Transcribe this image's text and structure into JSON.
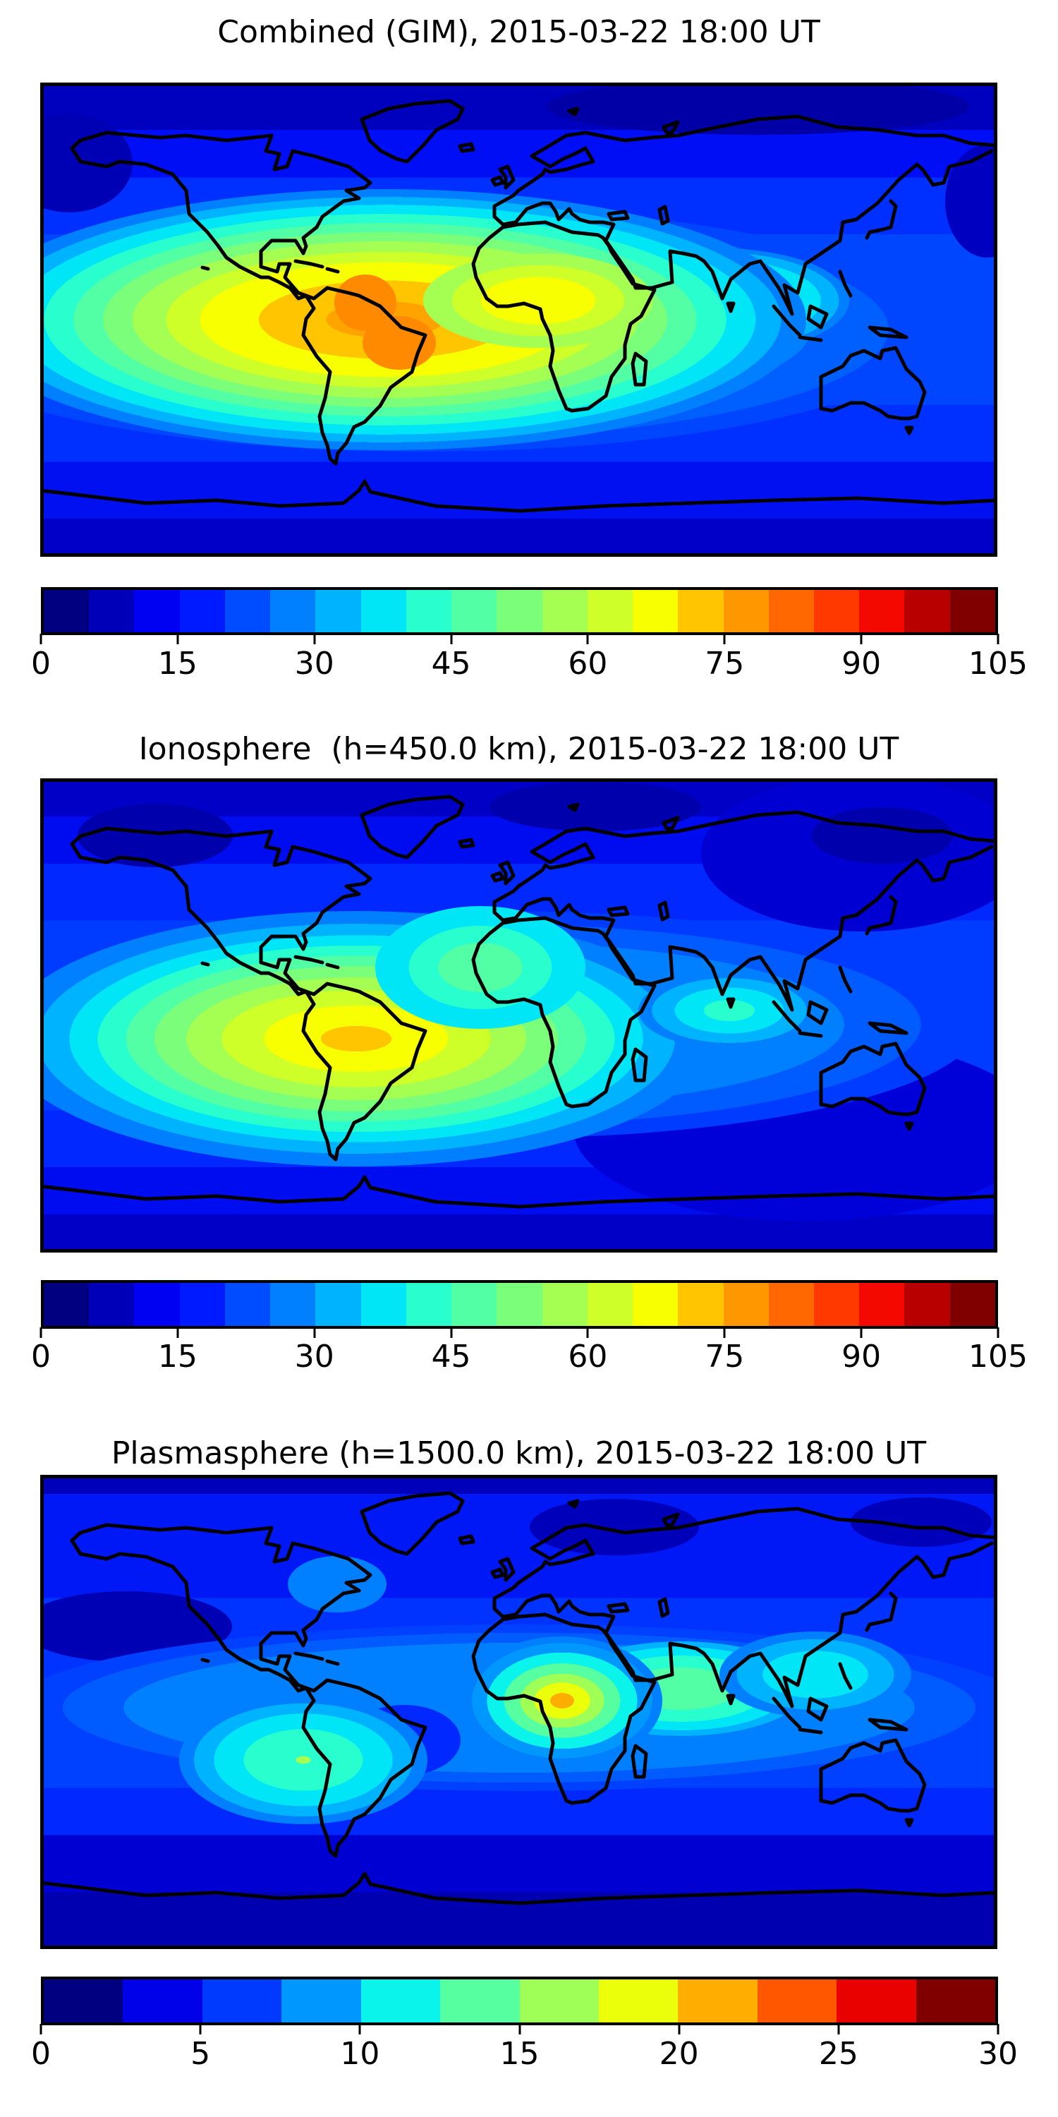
{
  "figure": {
    "background": "#ffffff",
    "text_color": "#000000",
    "description": "Three stacked global TEC contour maps with discrete jet colorbars"
  },
  "panels": [
    {
      "id": "combined",
      "title": "Combined (GIM), 2015-03-22 18:00 UT",
      "colorbar": {
        "min": 0,
        "max": 105,
        "ticks": [
          "0",
          "15",
          "30",
          "45",
          "60",
          "75",
          "90",
          "105"
        ],
        "segment_colors": [
          "#000080",
          "#0000b9",
          "#0000f3",
          "#001aff",
          "#004dff",
          "#0080ff",
          "#00b3ff",
          "#00e6f7",
          "#29ffce",
          "#52ffa5",
          "#7bff7b",
          "#a5ff52",
          "#ceff29",
          "#f7ff00",
          "#ffc600",
          "#ff9700",
          "#ff6800",
          "#ff3900",
          "#f30900",
          "#b90000",
          "#800000"
        ]
      }
    },
    {
      "id": "ionosphere",
      "title": "Ionosphere  (h=450.0 km), 2015-03-22 18:00 UT",
      "colorbar": {
        "min": 0,
        "max": 105,
        "ticks": [
          "0",
          "15",
          "30",
          "45",
          "60",
          "75",
          "90",
          "105"
        ],
        "segment_colors": [
          "#000080",
          "#0000b9",
          "#0000f3",
          "#001aff",
          "#004dff",
          "#0080ff",
          "#00b3ff",
          "#00e6f7",
          "#29ffce",
          "#52ffa5",
          "#7bff7b",
          "#a5ff52",
          "#ceff29",
          "#f7ff00",
          "#ffc600",
          "#ff9700",
          "#ff6800",
          "#ff3900",
          "#f30900",
          "#b90000",
          "#800000"
        ]
      }
    },
    {
      "id": "plasmasphere",
      "title": "Plasmasphere (h=1500.0 km), 2015-03-22 18:00 UT",
      "colorbar": {
        "min": 0,
        "max": 30,
        "ticks": [
          "0",
          "5",
          "10",
          "15",
          "20",
          "25",
          "30"
        ],
        "segment_colors": [
          "#000080",
          "#0000e9",
          "#003aff",
          "#0097ff",
          "#0bf4eb",
          "#56ffa0",
          "#a0ff56",
          "#ebff0b",
          "#ffad00",
          "#ff5700",
          "#e90100",
          "#800000"
        ]
      }
    }
  ],
  "chart_data": [
    {
      "type": "heatmap",
      "subplot": "top",
      "title": "Combined (GIM), 2015-03-22 18:00 UT",
      "projection": "equirectangular world map with black coastlines",
      "x_axis": "longitude -180..180 (no tick labels shown)",
      "y_axis": "latitude -90..90 (no tick labels shown)",
      "value_range": [
        0,
        105
      ],
      "contour_interval": 5,
      "n_levels": 21,
      "colormap": "jet (discrete filled contours)",
      "colorbar_ticks": [
        0,
        15,
        30,
        45,
        60,
        75,
        90,
        105
      ],
      "legend_position": "horizontal colorbar below map",
      "features": [
        {
          "label": "primary maximum",
          "value_approx": 90,
          "location": "equatorial South America, lon ~ -60, lat ~ -10"
        },
        {
          "label": "secondary orange cores",
          "value_approx": 85,
          "location": "Colombia/Amazon and SE Brazil"
        },
        {
          "label": "yellow enhancement band",
          "value_approx": 60,
          "location": "tropical Atlantic toward West Africa"
        },
        {
          "label": "moderate band",
          "value_approx": 45,
          "location": "southern India / Indian Ocean"
        },
        {
          "label": "background minimum",
          "value_approx": 5,
          "location": "high latitudes and poles"
        }
      ]
    },
    {
      "type": "heatmap",
      "subplot": "middle",
      "title": "Ionosphere  (h=450.0 km), 2015-03-22 18:00 UT",
      "projection": "equirectangular world map with black coastlines",
      "x_axis": "longitude -180..180 (no tick labels shown)",
      "y_axis": "latitude -90..90 (no tick labels shown)",
      "value_range": [
        0,
        105
      ],
      "contour_interval": 5,
      "n_levels": 21,
      "colormap": "jet (discrete filled contours)",
      "colorbar_ticks": [
        0,
        15,
        30,
        45,
        60,
        75,
        90,
        105
      ],
      "legend_position": "horizontal colorbar below map",
      "features": [
        {
          "label": "primary maximum",
          "value_approx": 75,
          "location": "equatorial South America, lon ~ -55, lat ~ -12"
        },
        {
          "label": "green/cyan tongue",
          "value_approx": 40,
          "location": "mid Atlantic toward NW Africa"
        },
        {
          "label": "cyan spot",
          "value_approx": 35,
          "location": "southern India / Indian Ocean"
        },
        {
          "label": "background minimum",
          "value_approx": 5,
          "location": "high latitudes, NE Asia, southern ocean"
        }
      ]
    },
    {
      "type": "heatmap",
      "subplot": "bottom",
      "title": "Plasmasphere (h=1500.0 km), 2015-03-22 18:00 UT",
      "projection": "equirectangular world map with black coastlines",
      "x_axis": "longitude -180..180 (no tick labels shown)",
      "y_axis": "latitude -90..90 (no tick labels shown)",
      "value_range": [
        0,
        30
      ],
      "contour_interval": 2.5,
      "n_levels": 12,
      "colormap": "jet (discrete filled contours)",
      "colorbar_ticks": [
        0,
        5,
        10,
        15,
        20,
        25,
        30
      ],
      "legend_position": "horizontal colorbar below map",
      "features": [
        {
          "label": "primary maximum",
          "value_approx": 25,
          "location": "central-west Africa, lon ~ 10, lat ~ -3"
        },
        {
          "label": "green patch",
          "value_approx": 15,
          "location": "Indian Ocean / South Asia"
        },
        {
          "label": "cyan patch",
          "value_approx": 12.5,
          "location": "eastern Pacific west of South America"
        },
        {
          "label": "tropical light-blue band",
          "value_approx": 10,
          "location": "entire low-latitude belt"
        },
        {
          "label": "background minimum",
          "value_approx": 2.5,
          "location": "polar caps and southern high latitudes"
        }
      ]
    }
  ]
}
